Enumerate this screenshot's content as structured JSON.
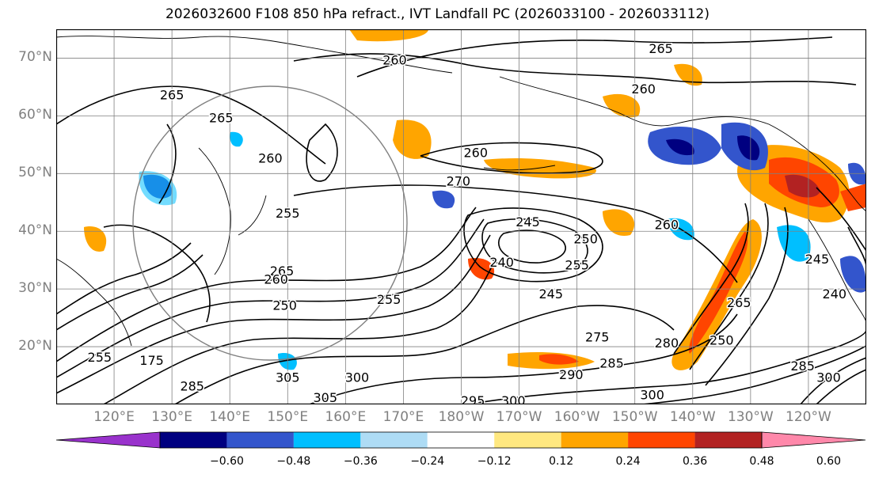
{
  "title": "2026032600 F108 850 hPa refract., IVT Landfall PC (2026033100 - 2026033112)",
  "map": {
    "projection": "PlateCarree",
    "lon_range": [
      110,
      250
    ],
    "lat_range": [
      10,
      75
    ],
    "lat_ticks": [
      "70°N",
      "60°N",
      "50°N",
      "40°N",
      "30°N",
      "20°N"
    ],
    "lat_values": [
      70,
      60,
      50,
      40,
      30,
      20
    ],
    "lon_ticks": [
      "120°E",
      "130°E",
      "140°E",
      "150°E",
      "160°E",
      "170°E",
      "180°W",
      "170°W",
      "160°W",
      "150°W",
      "140°W",
      "130°W",
      "120°W"
    ],
    "lon_values": [
      120,
      130,
      140,
      150,
      160,
      170,
      180,
      190,
      200,
      210,
      220,
      230,
      240
    ],
    "gridlines": true,
    "contour_labels": [
      {
        "text": "265",
        "lon": 214.5,
        "lat": 71.5
      },
      {
        "text": "260",
        "lon": 168.5,
        "lat": 69.5
      },
      {
        "text": "260",
        "lon": 211.5,
        "lat": 64.5
      },
      {
        "text": "265",
        "lon": 130,
        "lat": 63.5
      },
      {
        "text": "265",
        "lon": 138.5,
        "lat": 59.5
      },
      {
        "text": "260",
        "lon": 182.5,
        "lat": 53.5
      },
      {
        "text": "260",
        "lon": 147,
        "lat": 52.5
      },
      {
        "text": "270",
        "lon": 179.5,
        "lat": 48.5
      },
      {
        "text": "255",
        "lon": 150,
        "lat": 43
      },
      {
        "text": "245",
        "lon": 191.5,
        "lat": 41.5
      },
      {
        "text": "250",
        "lon": 201.5,
        "lat": 38.5
      },
      {
        "text": "260",
        "lon": 215.5,
        "lat": 41
      },
      {
        "text": "255",
        "lon": 200,
        "lat": 34
      },
      {
        "text": "240",
        "lon": 187,
        "lat": 34.5
      },
      {
        "text": "265",
        "lon": 149,
        "lat": 33
      },
      {
        "text": "260",
        "lon": 148,
        "lat": 31.5
      },
      {
        "text": "245",
        "lon": 195.5,
        "lat": 29
      },
      {
        "text": "245",
        "lon": 241.5,
        "lat": 35
      },
      {
        "text": "250",
        "lon": 149.5,
        "lat": 27
      },
      {
        "text": "255",
        "lon": 167.5,
        "lat": 28
      },
      {
        "text": "265",
        "lon": 228,
        "lat": 27.5
      },
      {
        "text": "240",
        "lon": 244.5,
        "lat": 29
      },
      {
        "text": "250",
        "lon": 225,
        "lat": 21
      },
      {
        "text": "280",
        "lon": 215.5,
        "lat": 20.5
      },
      {
        "text": "275",
        "lon": 203.5,
        "lat": 21.5
      },
      {
        "text": "285",
        "lon": 206,
        "lat": 17
      },
      {
        "text": "290",
        "lon": 199,
        "lat": 15
      },
      {
        "text": "175",
        "lon": 126.5,
        "lat": 17.5
      },
      {
        "text": "255",
        "lon": 117.5,
        "lat": 18
      },
      {
        "text": "305",
        "lon": 150,
        "lat": 14.5
      },
      {
        "text": "305",
        "lon": 156.5,
        "lat": 11
      },
      {
        "text": "300",
        "lon": 162,
        "lat": 14.5
      },
      {
        "text": "295",
        "lon": 182,
        "lat": 10.5
      },
      {
        "text": "300",
        "lon": 189,
        "lat": 10.5
      },
      {
        "text": "300",
        "lon": 213,
        "lat": 11.5
      },
      {
        "text": "300",
        "lon": 243.5,
        "lat": 14.5
      },
      {
        "text": "285",
        "lon": 133.5,
        "lat": 13
      },
      {
        "text": "285",
        "lon": 239,
        "lat": 16.5
      }
    ]
  },
  "colorbar": {
    "colors": [
      "#9932cc",
      "#000080",
      "#3355cc",
      "#00bfff",
      "#aedcf5",
      "#ffffff",
      "#ffe880",
      "#ffa500",
      "#ff4500",
      "#b22222",
      "#ff88aa"
    ],
    "labels": [
      "−0.60",
      "−0.48",
      "−0.36",
      "−0.24",
      "−0.12",
      "0.12",
      "0.24",
      "0.36",
      "0.48",
      "0.60"
    ],
    "values": [
      -0.6,
      -0.48,
      -0.36,
      -0.24,
      -0.12,
      0.12,
      0.24,
      0.36,
      0.48,
      0.6
    ]
  }
}
